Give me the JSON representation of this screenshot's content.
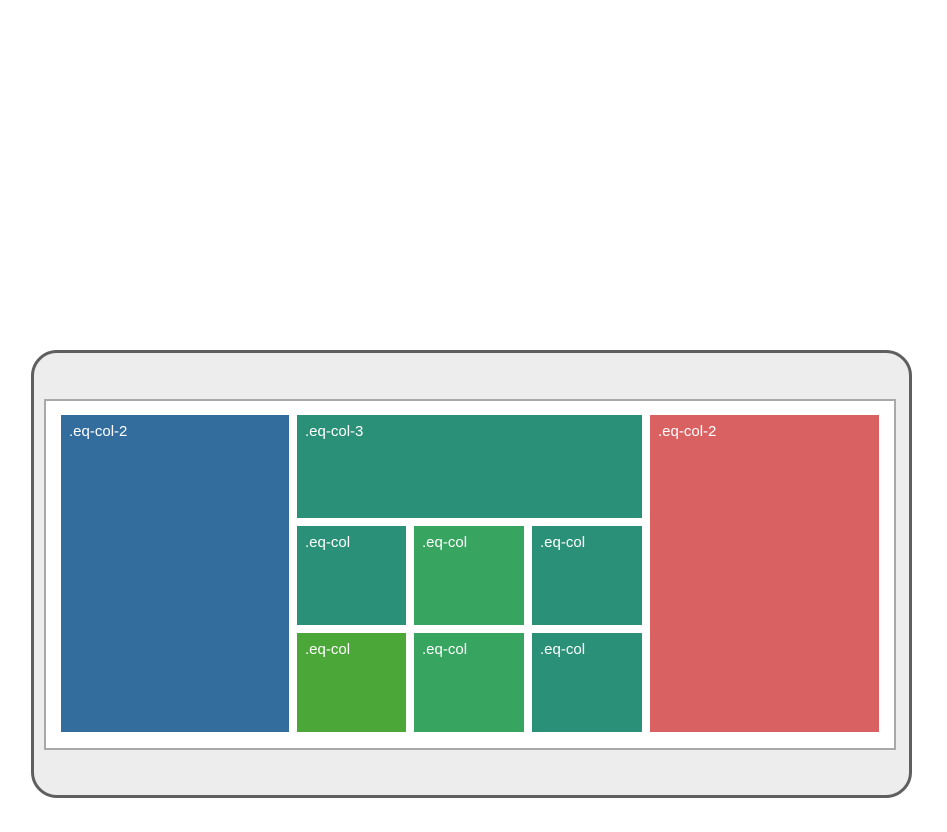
{
  "colors": {
    "frame_background": "#ededed",
    "frame_border": "#5f5f5f",
    "screen_border": "#a9a9a9",
    "blue": "#336d9d",
    "teal": "#2a9077",
    "green": "#37a45f",
    "lime_green": "#4ba738",
    "red": "#d96161"
  },
  "grid": {
    "left": {
      "label": ".eq-col-2",
      "color": "#336d9d"
    },
    "middle": {
      "top": {
        "label": ".eq-col-3",
        "color": "#2a9077"
      },
      "rows": [
        [
          {
            "label": ".eq-col",
            "color": "#2a9077"
          },
          {
            "label": ".eq-col",
            "color": "#37a45f"
          },
          {
            "label": ".eq-col",
            "color": "#2a9077"
          }
        ],
        [
          {
            "label": ".eq-col",
            "color": "#4ba738"
          },
          {
            "label": ".eq-col",
            "color": "#37a45f"
          },
          {
            "label": ".eq-col",
            "color": "#2a9077"
          }
        ]
      ]
    },
    "right": {
      "label": ".eq-col-2",
      "color": "#d96161"
    }
  }
}
